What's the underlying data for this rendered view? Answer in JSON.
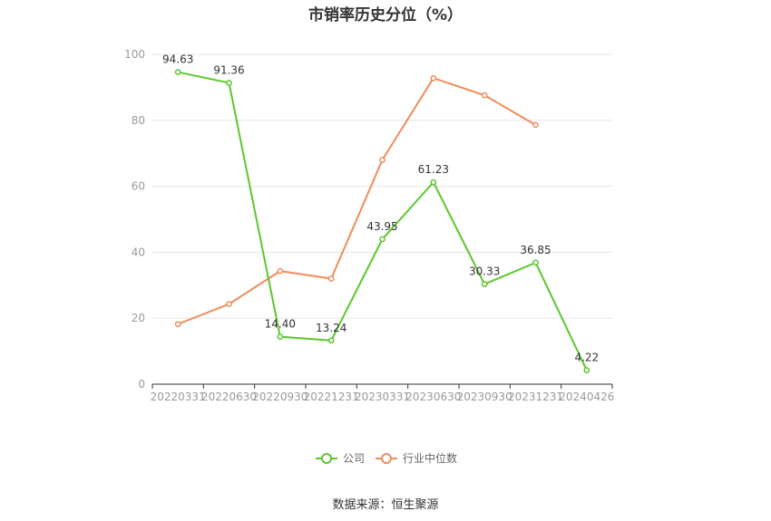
{
  "title": "市销率历史分位（%）",
  "source": "数据来源：恒生聚源",
  "chart_data": {
    "type": "line",
    "title": "市销率历史分位（%）",
    "categories": [
      "20220331",
      "20220630",
      "20220930",
      "20221231",
      "20230331",
      "20230630",
      "20230930",
      "20231231",
      "20240426"
    ],
    "ylim": [
      0,
      100
    ],
    "yticks": [
      0,
      20,
      40,
      60,
      80,
      100
    ],
    "grid": true,
    "legend_position": "bottom",
    "series": [
      {
        "name": "公司",
        "color": "#5bc72c",
        "values": [
          94.63,
          91.36,
          14.4,
          13.24,
          43.95,
          61.23,
          30.33,
          36.85,
          4.22
        ],
        "labels": [
          "94.63",
          "91.36",
          "14.40",
          "13.24",
          "43.95",
          "61.23",
          "30.33",
          "36.85",
          "4.22"
        ]
      },
      {
        "name": "行业中位数",
        "color": "#f08c5a",
        "values": [
          18.2,
          24.3,
          34.3,
          32.0,
          68.0,
          92.8,
          87.6,
          78.6,
          null
        ]
      }
    ]
  }
}
